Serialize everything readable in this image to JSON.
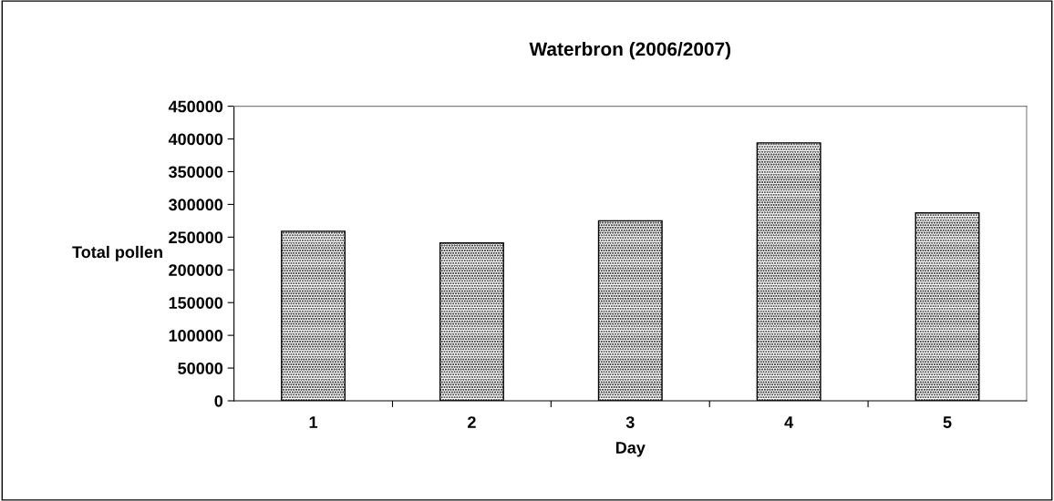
{
  "chart_data": {
    "type": "bar",
    "title": "Waterbron (2006/2007)",
    "xlabel": "Day",
    "ylabel": "Total pollen",
    "categories": [
      "1",
      "2",
      "3",
      "4",
      "5"
    ],
    "values": [
      259000,
      241000,
      275000,
      394000,
      287000
    ],
    "color": "#000000",
    "ylim": [
      0,
      450000
    ],
    "yticks": [
      0,
      50000,
      100000,
      150000,
      200000,
      250000,
      300000,
      350000,
      400000,
      450000
    ],
    "grid": false,
    "legend": false
  }
}
